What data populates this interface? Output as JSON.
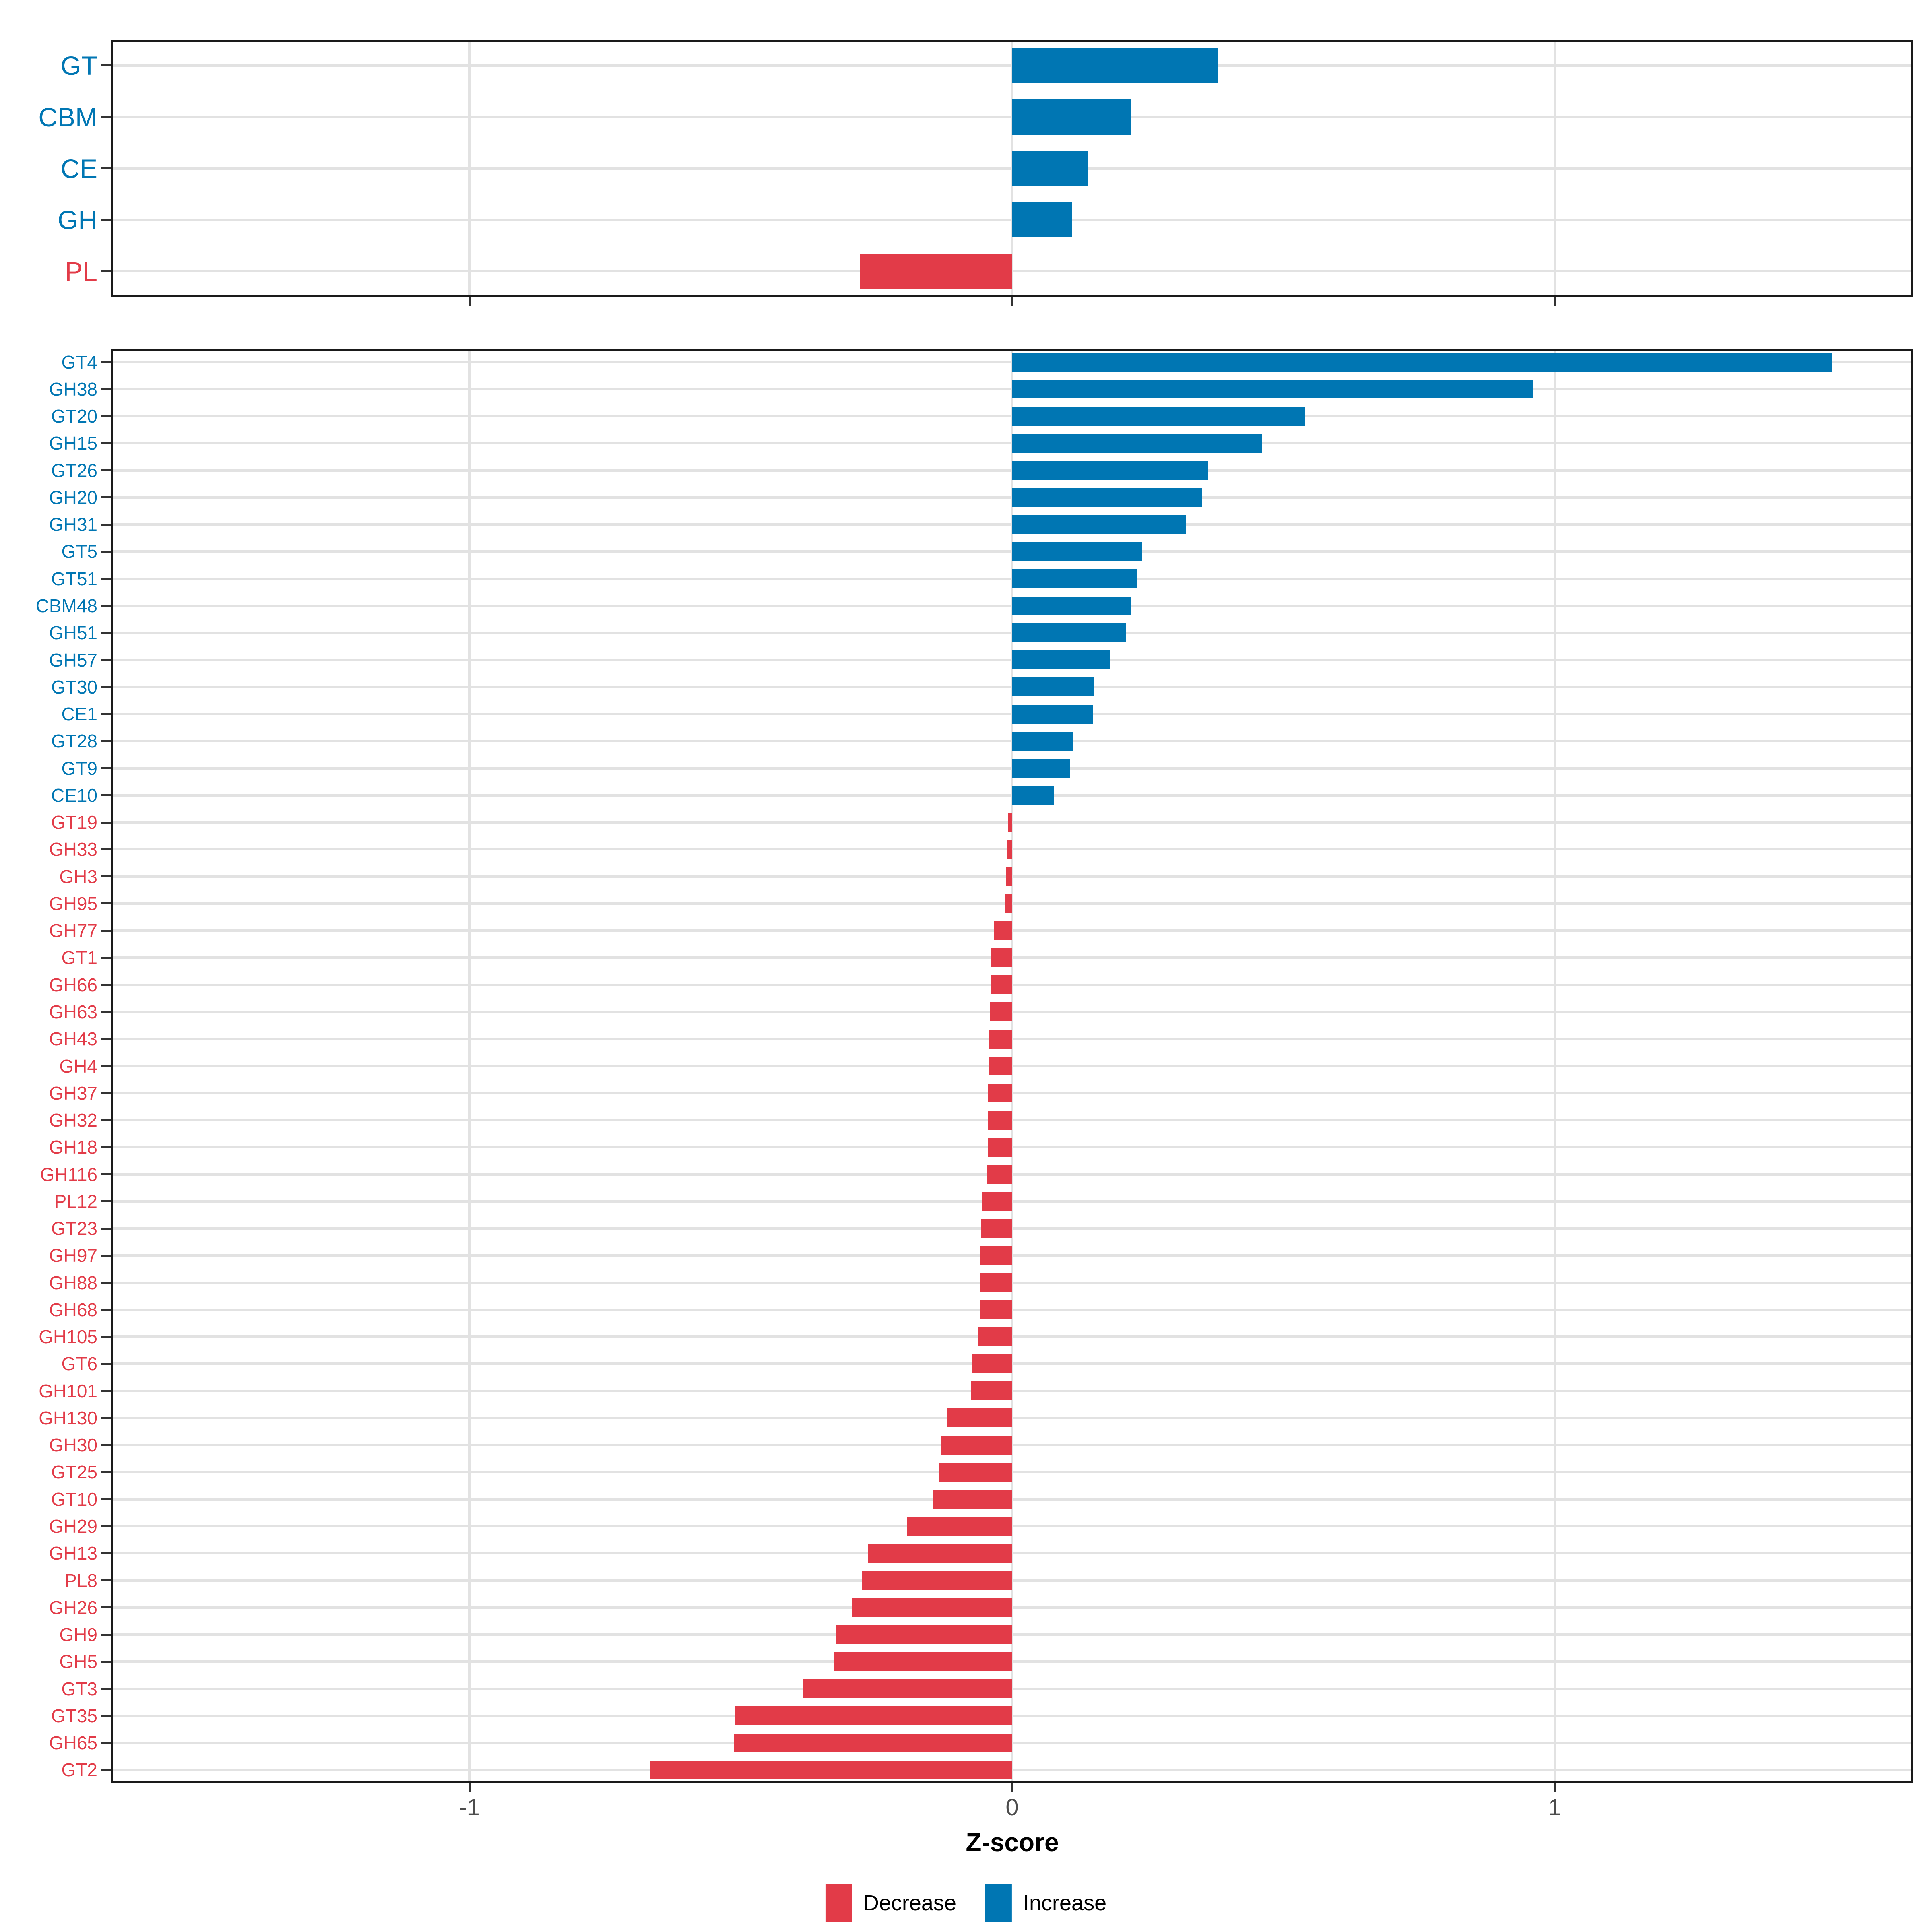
{
  "axis": {
    "title": "Z-score",
    "tick_labels": [
      "-1",
      "0",
      "1"
    ],
    "tick_values": [
      -1,
      0,
      1
    ]
  },
  "colors": {
    "increase": "#0076b3",
    "decrease": "#e23b48",
    "grid": "#e2e2e2",
    "axis_text": "#4d4d4d",
    "panel_border": "#1a1a1a"
  },
  "legend": [
    {
      "label": "Decrease",
      "color": "#e23b48"
    },
    {
      "label": "Increase",
      "color": "#0076b3"
    }
  ],
  "chart_data": [
    {
      "type": "bar",
      "orientation": "horizontal",
      "panel": "top",
      "title": "",
      "xlabel": "Z-score",
      "xlim": [
        -1.66,
        1.66
      ],
      "grid": true,
      "categories": [
        "GT",
        "CBM",
        "CE",
        "GH",
        "PL"
      ],
      "values": [
        0.38,
        0.22,
        0.14,
        0.11,
        -0.28
      ]
    },
    {
      "type": "bar",
      "orientation": "horizontal",
      "panel": "bottom",
      "title": "",
      "xlabel": "Z-score",
      "xlim": [
        -1.66,
        1.66
      ],
      "grid": true,
      "categories": [
        "GT4",
        "GH38",
        "GT20",
        "GH15",
        "GT26",
        "GH20",
        "GH31",
        "GT5",
        "GT51",
        "CBM48",
        "GH51",
        "GH57",
        "GT30",
        "CE1",
        "GT28",
        "GT9",
        "CE10",
        "GT19",
        "GH33",
        "GH3",
        "GH95",
        "GH77",
        "GT1",
        "GH66",
        "GH63",
        "GH43",
        "GH4",
        "GH37",
        "GH32",
        "GH18",
        "GH116",
        "PL12",
        "GT23",
        "GH97",
        "GH88",
        "GH68",
        "GH105",
        "GT6",
        "GH101",
        "GH130",
        "GH30",
        "GT25",
        "GT10",
        "GH29",
        "GH13",
        "PL8",
        "GH26",
        "GH9",
        "GH5",
        "GT3",
        "GT35",
        "GH65",
        "GT2"
      ],
      "values": [
        1.51,
        0.96,
        0.54,
        0.46,
        0.36,
        0.35,
        0.32,
        0.24,
        0.23,
        0.22,
        0.21,
        0.18,
        0.152,
        0.149,
        0.113,
        0.107,
        0.077,
        -0.007,
        -0.009,
        -0.011,
        -0.013,
        -0.033,
        -0.038,
        -0.04,
        -0.041,
        -0.042,
        -0.043,
        -0.044,
        -0.044,
        -0.045,
        -0.046,
        -0.055,
        -0.057,
        -0.058,
        -0.059,
        -0.06,
        -0.062,
        -0.073,
        -0.075,
        -0.12,
        -0.13,
        -0.134,
        -0.146,
        -0.194,
        -0.265,
        -0.276,
        -0.295,
        -0.325,
        -0.328,
        -0.385,
        -0.51,
        -0.512,
        -0.667
      ]
    }
  ]
}
